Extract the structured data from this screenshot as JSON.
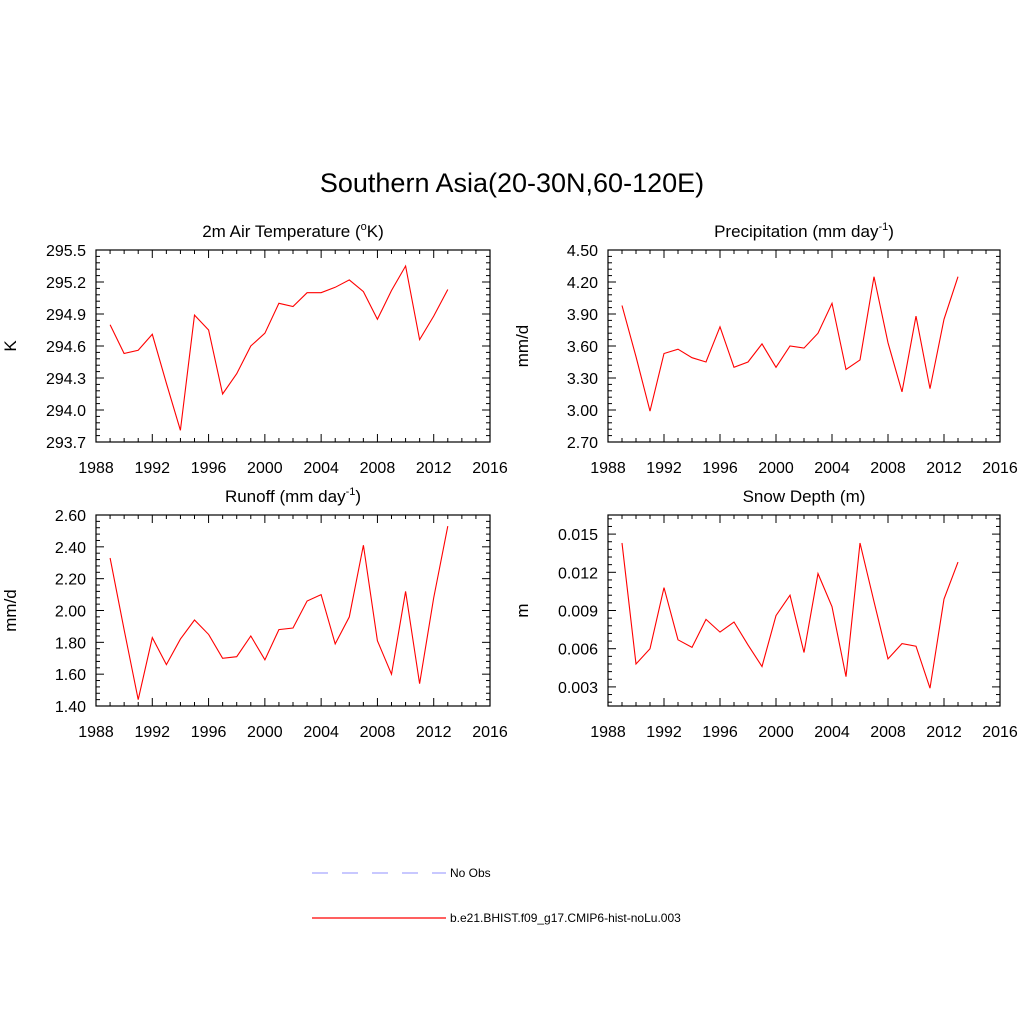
{
  "title": "Southern Asia(20-30N,60-120E)",
  "colors": {
    "model": "#ff0000",
    "obs": "#a8a8ff",
    "axis": "#000000"
  },
  "legend": [
    {
      "label": "No Obs",
      "style": "dashed",
      "color": "#a8a8ff"
    },
    {
      "label": "b.e21.BHIST.f09_g17.CMIP6-hist-noLu.003",
      "style": "solid",
      "color": "#ff0000"
    }
  ],
  "chart_data": [
    {
      "type": "line",
      "title": "2m Air Temperature (",
      "title_sup": "o",
      "title_after": "K)",
      "ylabel": "K",
      "xlim": [
        1988,
        2016
      ],
      "ylim": [
        293.7,
        295.5
      ],
      "yticks": [
        "293.7",
        "294.0",
        "294.3",
        "294.6",
        "294.9",
        "295.2",
        "295.5"
      ],
      "xticks": [
        "1988",
        "1992",
        "1996",
        "2000",
        "2004",
        "2008",
        "2012",
        "2016"
      ],
      "x": [
        1989,
        1990,
        1991,
        1992,
        1993,
        1994,
        1995,
        1996,
        1997,
        1998,
        1999,
        2000,
        2001,
        2002,
        2003,
        2004,
        2005,
        2006,
        2007,
        2008,
        2009,
        2010,
        2011,
        2012,
        2013
      ],
      "series": [
        {
          "values": [
            294.8,
            294.53,
            294.56,
            294.71,
            294.25,
            293.81,
            294.89,
            294.75,
            294.15,
            294.34,
            294.6,
            294.72,
            295.0,
            294.97,
            295.1,
            295.1,
            295.15,
            295.22,
            295.11,
            294.85,
            295.12,
            295.35,
            294.66,
            294.88,
            295.13
          ]
        }
      ]
    },
    {
      "type": "line",
      "title": "Precipitation (mm day",
      "title_sup": "-1",
      "title_after": ")",
      "ylabel": "mm/d",
      "xlim": [
        1988,
        2016
      ],
      "ylim": [
        2.7,
        4.5
      ],
      "yticks": [
        "2.70",
        "3.00",
        "3.30",
        "3.60",
        "3.90",
        "4.20",
        "4.50"
      ],
      "xticks": [
        "1988",
        "1992",
        "1996",
        "2000",
        "2004",
        "2008",
        "2012",
        "2016"
      ],
      "x": [
        1989,
        1990,
        1991,
        1992,
        1993,
        1994,
        1995,
        1996,
        1997,
        1998,
        1999,
        2000,
        2001,
        2002,
        2003,
        2004,
        2005,
        2006,
        2007,
        2008,
        2009,
        2010,
        2011,
        2012,
        2013
      ],
      "series": [
        {
          "values": [
            3.98,
            3.5,
            2.99,
            3.53,
            3.57,
            3.49,
            3.45,
            3.78,
            3.4,
            3.45,
            3.62,
            3.4,
            3.6,
            3.58,
            3.72,
            4.0,
            3.38,
            3.47,
            4.25,
            3.63,
            3.17,
            3.88,
            3.2,
            3.85,
            4.25
          ]
        }
      ]
    },
    {
      "type": "line",
      "title": "Runoff (mm day",
      "title_sup": "-1",
      "title_after": ")",
      "ylabel": "mm/d",
      "xlim": [
        1988,
        2016
      ],
      "ylim": [
        1.4,
        2.6
      ],
      "yticks": [
        "1.40",
        "1.60",
        "1.80",
        "2.00",
        "2.20",
        "2.40",
        "2.60"
      ],
      "xticks": [
        "1988",
        "1992",
        "1996",
        "2000",
        "2004",
        "2008",
        "2012",
        "2016"
      ],
      "x": [
        1989,
        1990,
        1991,
        1992,
        1993,
        1994,
        1995,
        1996,
        1997,
        1998,
        1999,
        2000,
        2001,
        2002,
        2003,
        2004,
        2005,
        2006,
        2007,
        2008,
        2009,
        2010,
        2011,
        2012,
        2013
      ],
      "series": [
        {
          "values": [
            2.33,
            1.88,
            1.44,
            1.83,
            1.66,
            1.82,
            1.94,
            1.85,
            1.7,
            1.71,
            1.84,
            1.69,
            1.88,
            1.89,
            2.06,
            2.1,
            1.79,
            1.96,
            2.41,
            1.81,
            1.6,
            2.12,
            1.54,
            2.08,
            2.53
          ]
        }
      ]
    },
    {
      "type": "line",
      "title": "Snow Depth (m)",
      "title_sup": "",
      "title_after": "",
      "ylabel": "m",
      "xlim": [
        1988,
        2016
      ],
      "ylim": [
        0.0015,
        0.0165
      ],
      "yticks": [
        "0.003",
        "0.006",
        "0.009",
        "0.012",
        "0.015"
      ],
      "xticks": [
        "1988",
        "1992",
        "1996",
        "2000",
        "2004",
        "2008",
        "2012",
        "2016"
      ],
      "x": [
        1989,
        1990,
        1991,
        1992,
        1993,
        1994,
        1995,
        1996,
        1997,
        1998,
        1999,
        2000,
        2001,
        2002,
        2003,
        2004,
        2005,
        2006,
        2007,
        2008,
        2009,
        2010,
        2011,
        2012,
        2013
      ],
      "series": [
        {
          "values": [
            0.0143,
            0.0048,
            0.006,
            0.0108,
            0.0067,
            0.0061,
            0.0083,
            0.0073,
            0.0081,
            0.0063,
            0.0046,
            0.0086,
            0.0102,
            0.0057,
            0.0119,
            0.0093,
            0.0038,
            0.0143,
            0.0097,
            0.0052,
            0.0064,
            0.0062,
            0.0029,
            0.0099,
            0.0128
          ]
        }
      ]
    }
  ]
}
